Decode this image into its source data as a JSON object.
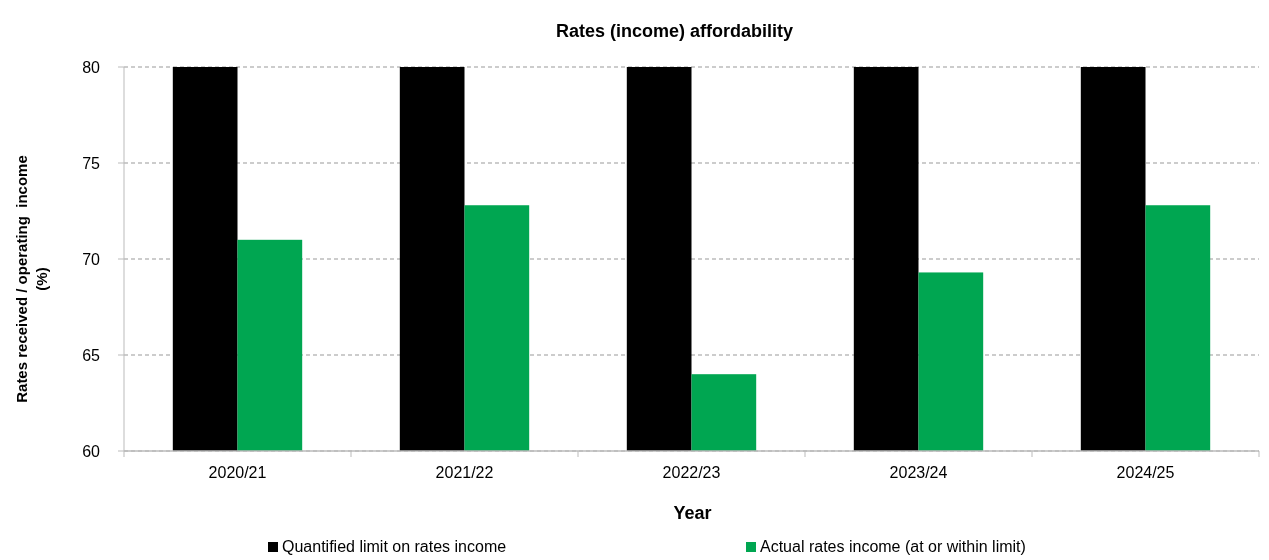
{
  "chart_data": {
    "type": "bar",
    "title": "Rates (income) affordability",
    "xlabel": "Year",
    "ylabel": "Rates received / operating  income\n(%)",
    "categories": [
      "2020/21",
      "2021/22",
      "2022/23",
      "2023/24",
      "2024/25"
    ],
    "series": [
      {
        "name": "Quantified limit on rates income",
        "color": "#000000",
        "values": [
          80,
          80,
          80,
          80,
          80
        ]
      },
      {
        "name": "Actual rates income (at or within limit)",
        "color": "#00a651",
        "values": [
          71.0,
          72.8,
          64.0,
          69.3,
          72.8
        ]
      }
    ],
    "ylim": [
      60,
      80
    ],
    "yticks": [
      60,
      65,
      70,
      75,
      80
    ],
    "grid": "y",
    "legend": "bottom"
  }
}
